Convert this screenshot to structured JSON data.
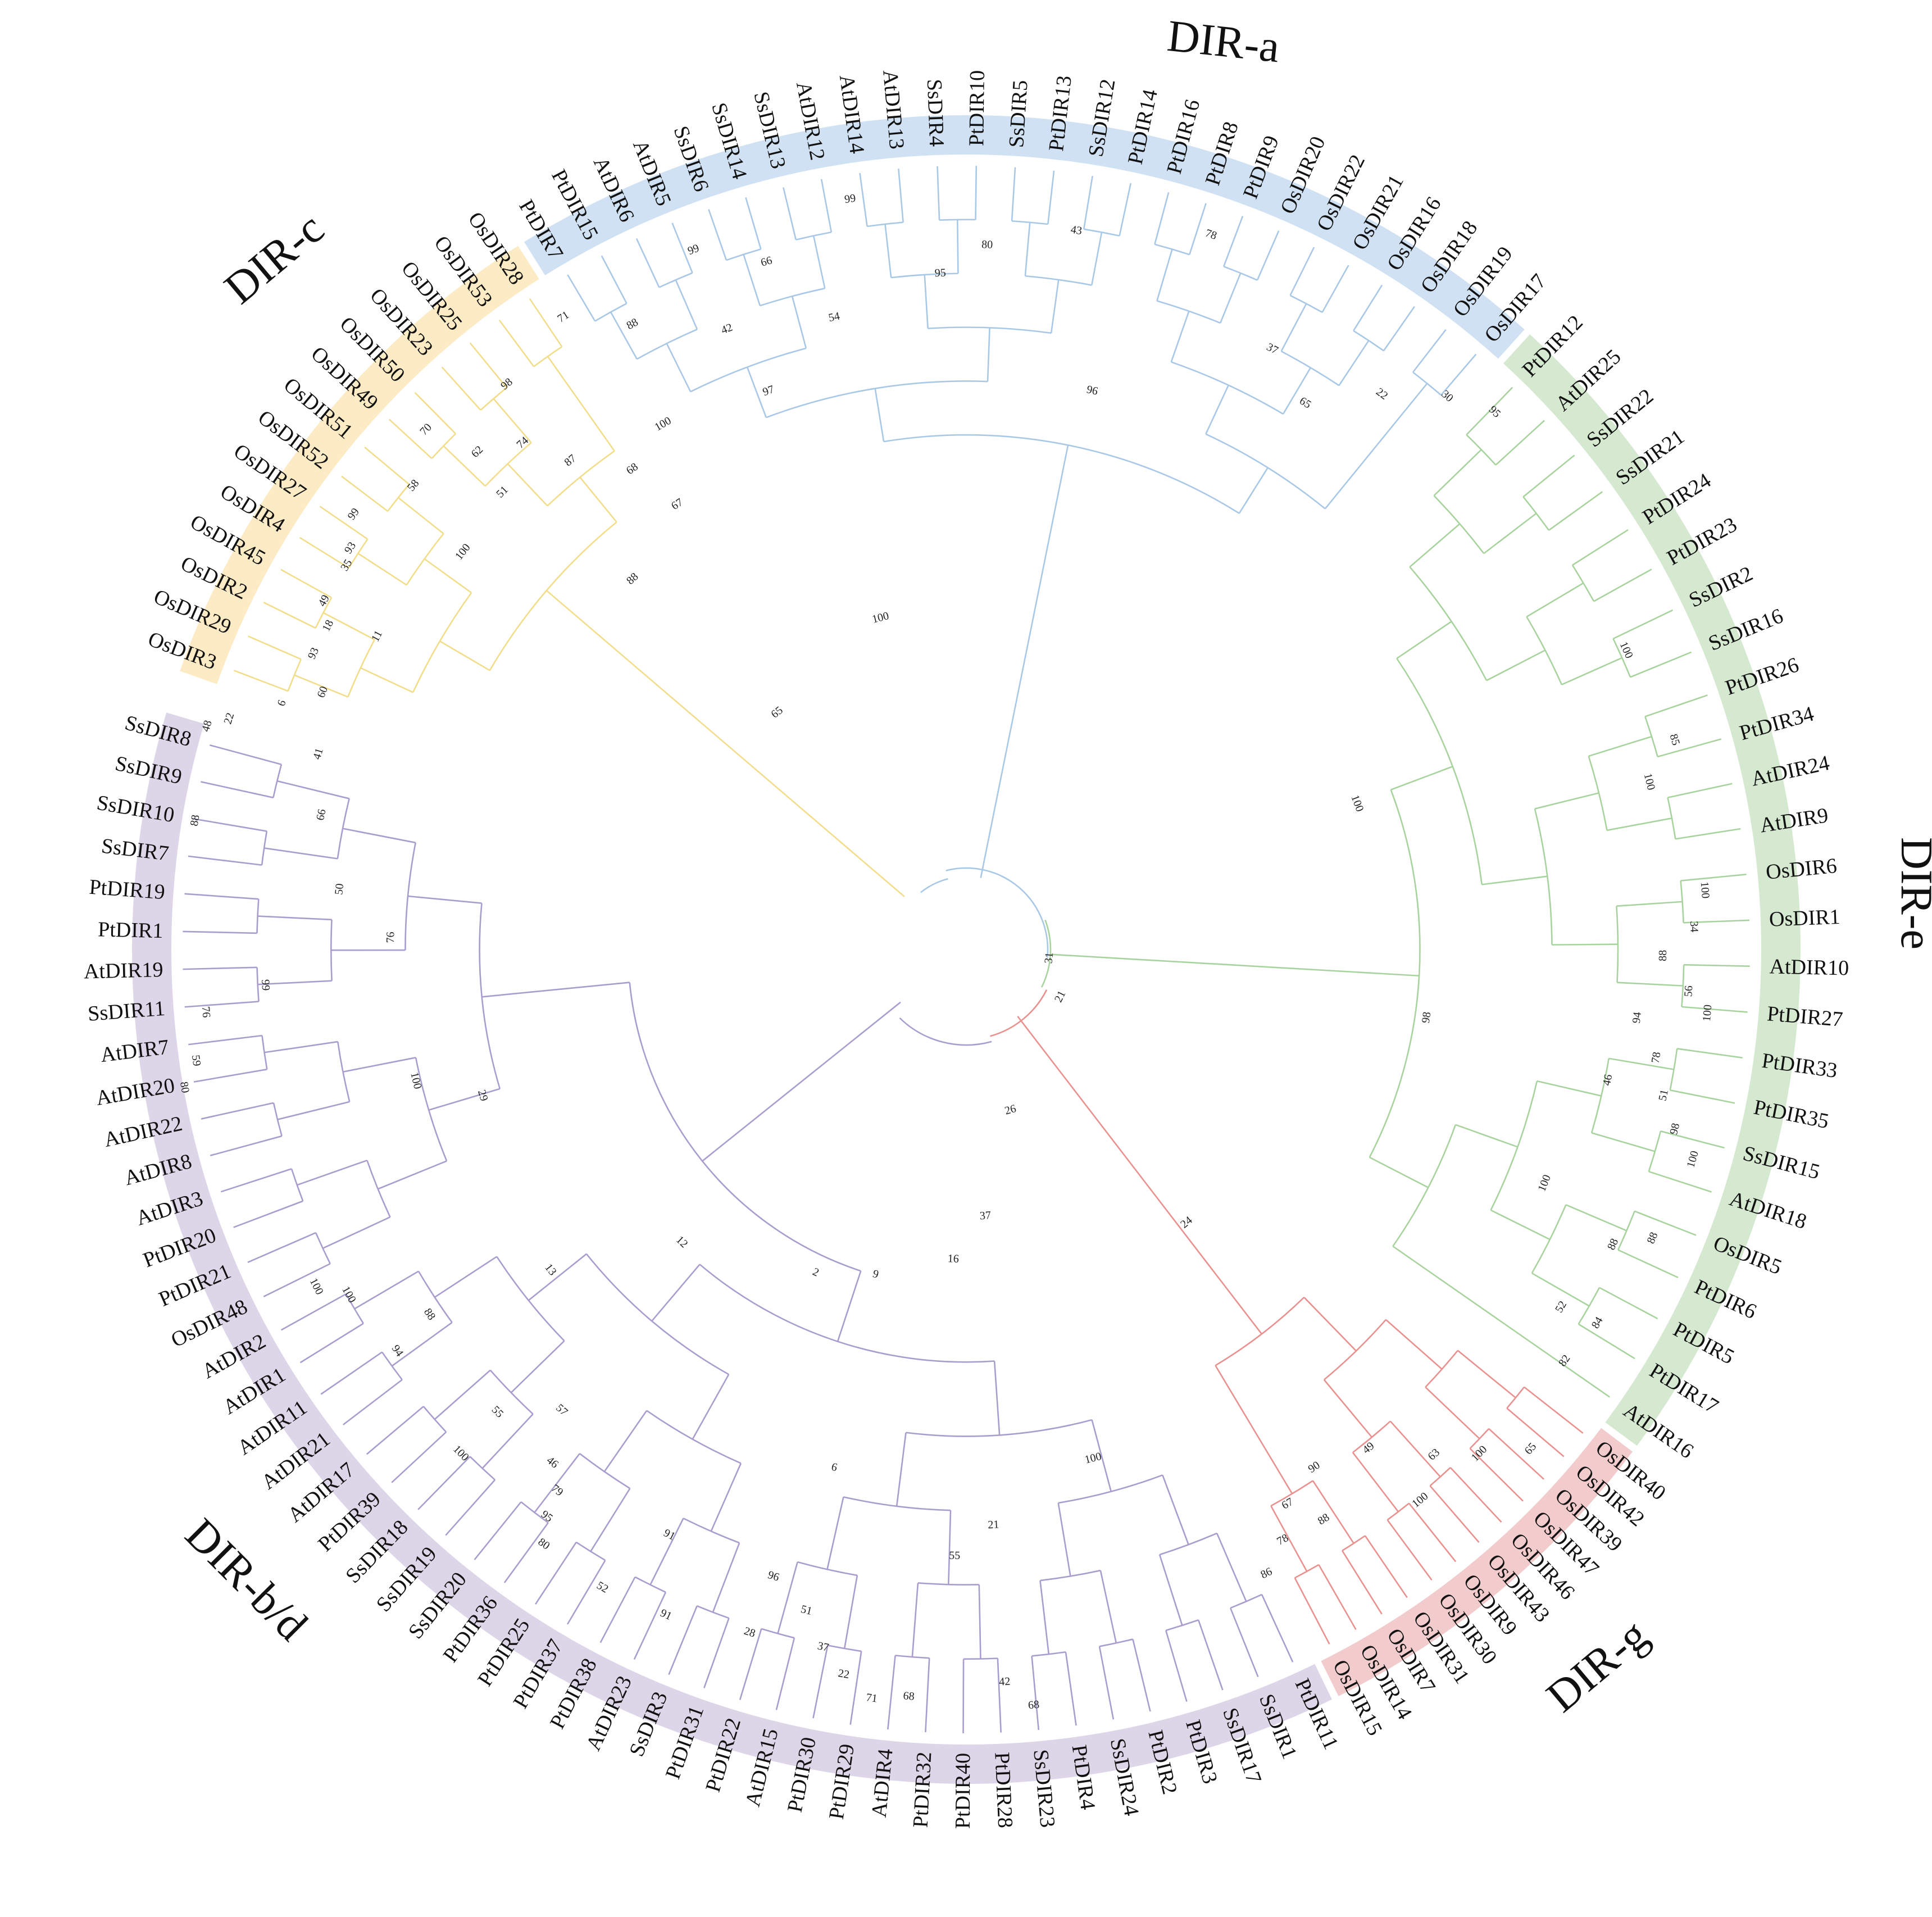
{
  "tree": {
    "clades": [
      {
        "id": "a",
        "name": "DIR-a",
        "band_color": "#cfe1f3",
        "line_color": "#a9c8e6",
        "leaves": [
          "PtDIR7",
          "PtDIR15",
          "AtDIR6",
          "AtDIR5",
          "SsDIR6",
          "SsDIR14",
          "SsDIR13",
          "AtDIR12",
          "AtDIR14",
          "AtDIR13",
          "SsDIR4",
          "PtDIR10",
          "SsDIR5",
          "PtDIR13",
          "SsDIR12",
          "PtDIR14",
          "PtDIR16",
          "PtDIR8",
          "PtDIR9",
          "OsDIR20",
          "OsDIR22",
          "OsDIR21",
          "OsDIR16",
          "OsDIR18",
          "OsDIR19",
          "OsDIR17"
        ]
      },
      {
        "id": "e",
        "name": "DIR-e",
        "band_color": "#d5e8d0",
        "line_color": "#a9d39e",
        "leaves": [
          "PtDIR12",
          "AtDIR25",
          "SsDIR22",
          "SsDIR21",
          "PtDIR24",
          "PtDIR23",
          "SsDIR2",
          "SsDIR16",
          "PtDIR26",
          "PtDIR34",
          "AtDIR24",
          "AtDIR9",
          "OsDIR6",
          "OsDIR1",
          "AtDIR10",
          "PtDIR27",
          "PtDIR33",
          "PtDIR35",
          "SsDIR15",
          "AtDIR18",
          "OsDIR5",
          "PtDIR6",
          "PtDIR5",
          "PtDIR17",
          "AtDIR16"
        ]
      },
      {
        "id": "g",
        "name": "DIR-g",
        "band_color": "#f2cccc",
        "line_color": "#e8918f",
        "leaves": [
          "OsDIR40",
          "OsDIR42",
          "OsDIR39",
          "OsDIR47",
          "OsDIR46",
          "OsDIR43",
          "OsDIR9",
          "OsDIR30",
          "OsDIR31",
          "OsDIR7",
          "OsDIR14",
          "OsDIR15"
        ]
      },
      {
        "id": "bd",
        "name": "DIR-b/d",
        "band_color": "#ddd6e8",
        "line_color": "#a99dcd",
        "leaves": [
          "PtDIR11",
          "SsDIR1",
          "SsDIR17",
          "PtDIR3",
          "PtDIR2",
          "SsDIR24",
          "PtDIR4",
          "SsDIR23",
          "PtDIR28",
          "PtDIR40",
          "PtDIR32",
          "AtDIR4",
          "PtDIR29",
          "PtDIR30",
          "AtDIR15",
          "PtDIR22",
          "PtDIR31",
          "SsDIR3",
          "AtDIR23",
          "PtDIR38",
          "PtDIR37",
          "PtDIR25",
          "PtDIR36",
          "SsDIR20",
          "SsDIR19",
          "SsDIR18",
          "PtDIR39",
          "AtDIR17",
          "AtDIR21",
          "AtDIR11",
          "AtDIR1",
          "AtDIR2",
          "OsDIR48",
          "PtDIR21",
          "PtDIR20",
          "AtDIR3",
          "AtDIR8",
          "AtDIR22",
          "AtDIR20",
          "AtDIR7",
          "SsDIR11",
          "AtDIR19",
          "PtDIR1",
          "PtDIR19",
          "SsDIR7",
          "SsDIR10",
          "SsDIR9",
          "SsDIR8"
        ]
      },
      {
        "id": "c",
        "name": "DIR-c",
        "band_color": "#fcebc4",
        "line_color": "#f2dd8a",
        "leaves": [
          "OsDIR3",
          "OsDIR29",
          "OsDIR2",
          "OsDIR45",
          "OsDIR4",
          "OsDIR27",
          "OsDIR52",
          "OsDIR51",
          "OsDIR49",
          "OsDIR50",
          "OsDIR23",
          "OsDIR25",
          "OsDIR53",
          "OsDIR28"
        ]
      }
    ],
    "bootstrap_values": [
      {
        "clade": "a",
        "value": "99",
        "a": -144.6,
        "r": 1338
      },
      {
        "clade": "a",
        "value": "70",
        "a": -136.1,
        "r": 1335
      },
      {
        "clade": "a",
        "value": "71",
        "a": -122.5,
        "r": 1335
      },
      {
        "clade": "a",
        "value": "98",
        "a": -129.1,
        "r": 1297
      },
      {
        "clade": "a",
        "value": "58",
        "a": -140.0,
        "r": 1285
      },
      {
        "clade": "a",
        "value": "62",
        "a": -134.5,
        "r": 1242
      },
      {
        "clade": "a",
        "value": "99",
        "a": -111.3,
        "r": 1337
      },
      {
        "clade": "a",
        "value": "88",
        "a": -118.1,
        "r": 1262
      },
      {
        "clade": "a",
        "value": "99",
        "a": -98.8,
        "r": 1352
      },
      {
        "clade": "a",
        "value": "66",
        "a": -106.2,
        "r": 1275
      },
      {
        "clade": "a",
        "value": "78",
        "a": -71.1,
        "r": 1345
      },
      {
        "clade": "a",
        "value": "43",
        "a": -81.3,
        "r": 1295
      },
      {
        "clade": "a",
        "value": "80",
        "a": -88.3,
        "r": 1255
      },
      {
        "clade": "a",
        "value": "95",
        "a": -92.2,
        "r": 1205
      },
      {
        "clade": "a",
        "value": "54",
        "a": -101.8,
        "r": 1150
      },
      {
        "clade": "a",
        "value": "97",
        "a": -109.5,
        "r": 1055
      },
      {
        "clade": "a",
        "value": "87",
        "a": -129.0,
        "r": 1120
      },
      {
        "clade": "a",
        "value": "67",
        "a": -123.0,
        "r": 945
      },
      {
        "clade": "a",
        "value": "37",
        "a": -63.0,
        "r": 1200
      },
      {
        "clade": "a",
        "value": "95",
        "a": -45.5,
        "r": 1342
      },
      {
        "clade": "a",
        "value": "30",
        "a": -49.0,
        "r": 1305
      },
      {
        "clade": "a",
        "value": "22",
        "a": -53.2,
        "r": 1235
      },
      {
        "clade": "a",
        "value": "65",
        "a": -58.2,
        "r": 1145
      },
      {
        "clade": "a",
        "value": "96",
        "a": -77.3,
        "r": 1020
      },
      {
        "clade": "a",
        "value": "100",
        "a": -104.5,
        "r": 610
      },
      {
        "clade": "e",
        "value": "100",
        "a": -24.4,
        "r": 1290
      },
      {
        "clade": "e",
        "value": "85",
        "a": -16.5,
        "r": 1315
      },
      {
        "clade": "e",
        "value": "100",
        "a": -13.8,
        "r": 1252
      },
      {
        "clade": "e",
        "value": "100",
        "a": -4.6,
        "r": 1319
      },
      {
        "clade": "e",
        "value": "34",
        "a": -1.8,
        "r": 1296
      },
      {
        "clade": "e",
        "value": "56",
        "a": 3.3,
        "r": 1288
      },
      {
        "clade": "e",
        "value": "100",
        "a": 4.9,
        "r": 1324
      },
      {
        "clade": "e",
        "value": "88",
        "a": 0.5,
        "r": 1240
      },
      {
        "clade": "e",
        "value": "94",
        "a": 5.8,
        "r": 1200
      },
      {
        "clade": "e",
        "value": "78",
        "a": 8.9,
        "r": 1243
      },
      {
        "clade": "e",
        "value": "51",
        "a": 11.8,
        "r": 1268
      },
      {
        "clade": "e",
        "value": "98",
        "a": 14.2,
        "r": 1301
      },
      {
        "clade": "e",
        "value": "100",
        "a": 16.1,
        "r": 1346
      },
      {
        "clade": "e",
        "value": "46",
        "a": 11.5,
        "r": 1165
      },
      {
        "clade": "e",
        "value": "88",
        "a": 22.8,
        "r": 1325
      },
      {
        "clade": "e",
        "value": "88",
        "a": 24.5,
        "r": 1265
      },
      {
        "clade": "e",
        "value": "84",
        "a": 30.6,
        "r": 1305
      },
      {
        "clade": "e",
        "value": "82",
        "a": 34.5,
        "r": 1292
      },
      {
        "clade": "e",
        "value": "52",
        "a": 31.0,
        "r": 1235
      },
      {
        "clade": "e",
        "value": "100",
        "a": 22.0,
        "r": 1110
      },
      {
        "clade": "e",
        "value": "98",
        "a": 8.4,
        "r": 828
      },
      {
        "clade": "e",
        "value": "100",
        "a": -20.5,
        "r": 743
      },
      {
        "clade": "e",
        "value": "31",
        "a": 5.8,
        "r": 148
      },
      {
        "clade": "e",
        "value": "21",
        "a": 26.6,
        "r": 187
      },
      {
        "clade": "g",
        "value": "65",
        "a": 41.5,
        "r": 1341
      },
      {
        "clade": "g",
        "value": "100",
        "a": 44.5,
        "r": 1280
      },
      {
        "clade": "g",
        "value": "63",
        "a": 47.2,
        "r": 1225
      },
      {
        "clade": "g",
        "value": "100",
        "a": 50.5,
        "r": 1270
      },
      {
        "clade": "g",
        "value": "49",
        "a": 51.1,
        "r": 1140
      },
      {
        "clade": "g",
        "value": "90",
        "a": 56.1,
        "r": 1110
      },
      {
        "clade": "g",
        "value": "88",
        "a": 57.9,
        "r": 1197
      },
      {
        "clade": "g",
        "value": "67",
        "a": 59.9,
        "r": 1140
      },
      {
        "clade": "g",
        "value": "78",
        "a": 61.8,
        "r": 1192
      },
      {
        "clade": "g",
        "value": "86",
        "a": 64.3,
        "r": 1232
      },
      {
        "clade": "g",
        "value": "24",
        "a": 51.1,
        "r": 624
      },
      {
        "clade": "bd",
        "value": "26",
        "a": 74.6,
        "r": 296
      },
      {
        "clade": "bd",
        "value": "37",
        "a": 85.9,
        "r": 475
      },
      {
        "clade": "bd",
        "value": "16",
        "a": 92.4,
        "r": 551
      },
      {
        "clade": "bd",
        "value": "100",
        "a": 76.0,
        "r": 933
      },
      {
        "clade": "bd",
        "value": "21",
        "a": 87.3,
        "r": 1025
      },
      {
        "clade": "bd",
        "value": "68",
        "a": 84.9,
        "r": 1350
      },
      {
        "clade": "bd",
        "value": "42",
        "a": 87.0,
        "r": 1305
      },
      {
        "clade": "bd",
        "value": "55",
        "a": 91.1,
        "r": 1079
      },
      {
        "clade": "bd",
        "value": "68",
        "a": 94.4,
        "r": 1333
      },
      {
        "clade": "bd",
        "value": "71",
        "a": 97.2,
        "r": 1343
      },
      {
        "clade": "bd",
        "value": "22",
        "a": 99.6,
        "r": 1308
      },
      {
        "clade": "bd",
        "value": "37",
        "a": 101.6,
        "r": 1267
      },
      {
        "clade": "bd",
        "value": "51",
        "a": 103.6,
        "r": 1210
      },
      {
        "clade": "bd",
        "value": "28",
        "a": 107.6,
        "r": 1275
      },
      {
        "clade": "bd",
        "value": "96",
        "a": 107.1,
        "r": 1167
      },
      {
        "clade": "bd",
        "value": "6",
        "a": 104.3,
        "r": 951
      },
      {
        "clade": "bd",
        "value": "91",
        "a": 114.3,
        "r": 1299
      },
      {
        "clade": "bd",
        "value": "52",
        "a": 119.7,
        "r": 1307
      },
      {
        "clade": "bd",
        "value": "91",
        "a": 116.9,
        "r": 1168
      },
      {
        "clade": "bd",
        "value": "9",
        "a": 105.6,
        "r": 600
      },
      {
        "clade": "bd",
        "value": "2",
        "a": 115.0,
        "r": 634
      },
      {
        "clade": "bd",
        "value": "80",
        "a": 125.4,
        "r": 1298
      },
      {
        "clade": "bd",
        "value": "95",
        "a": 126.5,
        "r": 1255
      },
      {
        "clade": "bd",
        "value": "79",
        "a": 127.1,
        "r": 1207
      },
      {
        "clade": "bd",
        "value": "46",
        "a": 128.9,
        "r": 1173
      },
      {
        "clade": "bd",
        "value": "100",
        "a": 135.1,
        "r": 1270
      },
      {
        "clade": "bd",
        "value": "55",
        "a": 135.4,
        "r": 1172
      },
      {
        "clade": "bd",
        "value": "57",
        "a": 131.3,
        "r": 1091
      },
      {
        "clade": "bd",
        "value": "94",
        "a": 144.8,
        "r": 1239
      },
      {
        "clade": "bd",
        "value": "100",
        "a": 150.8,
        "r": 1259
      },
      {
        "clade": "bd",
        "value": "100",
        "a": 152.6,
        "r": 1303
      },
      {
        "clade": "bd",
        "value": "88",
        "a": 145.8,
        "r": 1155
      },
      {
        "clade": "bd",
        "value": "13",
        "a": 142.4,
        "r": 934
      },
      {
        "clade": "bd",
        "value": "12",
        "a": 134.2,
        "r": 726
      },
      {
        "clade": "bd",
        "value": "100",
        "a": 166.6,
        "r": 1007
      },
      {
        "clade": "bd",
        "value": "80",
        "a": 170.0,
        "r": 1413
      },
      {
        "clade": "bd",
        "value": "59",
        "a": 171.8,
        "r": 1385
      },
      {
        "clade": "bd",
        "value": "76",
        "a": 175.3,
        "r": 1358
      },
      {
        "clade": "bd",
        "value": "99",
        "a": 177.1,
        "r": 1249
      },
      {
        "clade": "bd",
        "value": "88",
        "a": 189.5,
        "r": 1392
      },
      {
        "clade": "bd",
        "value": "93",
        "a": -146.9,
        "r": 1309
      },
      {
        "clade": "bd",
        "value": "49",
        "a": -151.5,
        "r": 1301
      },
      {
        "clade": "bd",
        "value": "93",
        "a": -155.6,
        "r": 1276
      },
      {
        "clade": "bd",
        "value": "60",
        "a": -158.2,
        "r": 1234
      },
      {
        "clade": "bd",
        "value": "41",
        "a": -163.2,
        "r": 1205
      },
      {
        "clade": "bd",
        "value": "66",
        "a": -168.2,
        "r": 1173
      },
      {
        "clade": "bd",
        "value": "50",
        "a": -174.5,
        "r": 1121
      },
      {
        "clade": "bd",
        "value": "76",
        "a": -178.8,
        "r": 1025
      },
      {
        "clade": "bd",
        "value": "29",
        "a": 163.2,
        "r": 899
      },
      {
        "clade": "c",
        "value": "48",
        "a": -163.6,
        "r": 1409
      },
      {
        "clade": "c",
        "value": "22",
        "a": -162.6,
        "r": 1375
      },
      {
        "clade": "c",
        "value": "6",
        "a": -160.2,
        "r": 1295
      },
      {
        "clade": "c",
        "value": "18",
        "a": -153.1,
        "r": 1274
      },
      {
        "clade": "c",
        "value": "35",
        "a": -148.2,
        "r": 1298
      },
      {
        "clade": "c",
        "value": "11",
        "a": -152.0,
        "r": 1188
      },
      {
        "clade": "c",
        "value": "100",
        "a": -141.7,
        "r": 1142
      },
      {
        "clade": "c",
        "value": "51",
        "a": -135.4,
        "r": 1160
      },
      {
        "clade": "c",
        "value": "74",
        "a": -131.2,
        "r": 1199
      },
      {
        "clade": "c",
        "value": "100",
        "a": -120.0,
        "r": 1080
      },
      {
        "clade": "c",
        "value": "42",
        "a": -111.1,
        "r": 1184
      },
      {
        "clade": "c",
        "value": "68",
        "a": -124.8,
        "r": 1042
      },
      {
        "clade": "c",
        "value": "88",
        "a": -132.0,
        "r": 888
      },
      {
        "clade": "c",
        "value": "65",
        "a": -128.6,
        "r": 540
      }
    ]
  }
}
